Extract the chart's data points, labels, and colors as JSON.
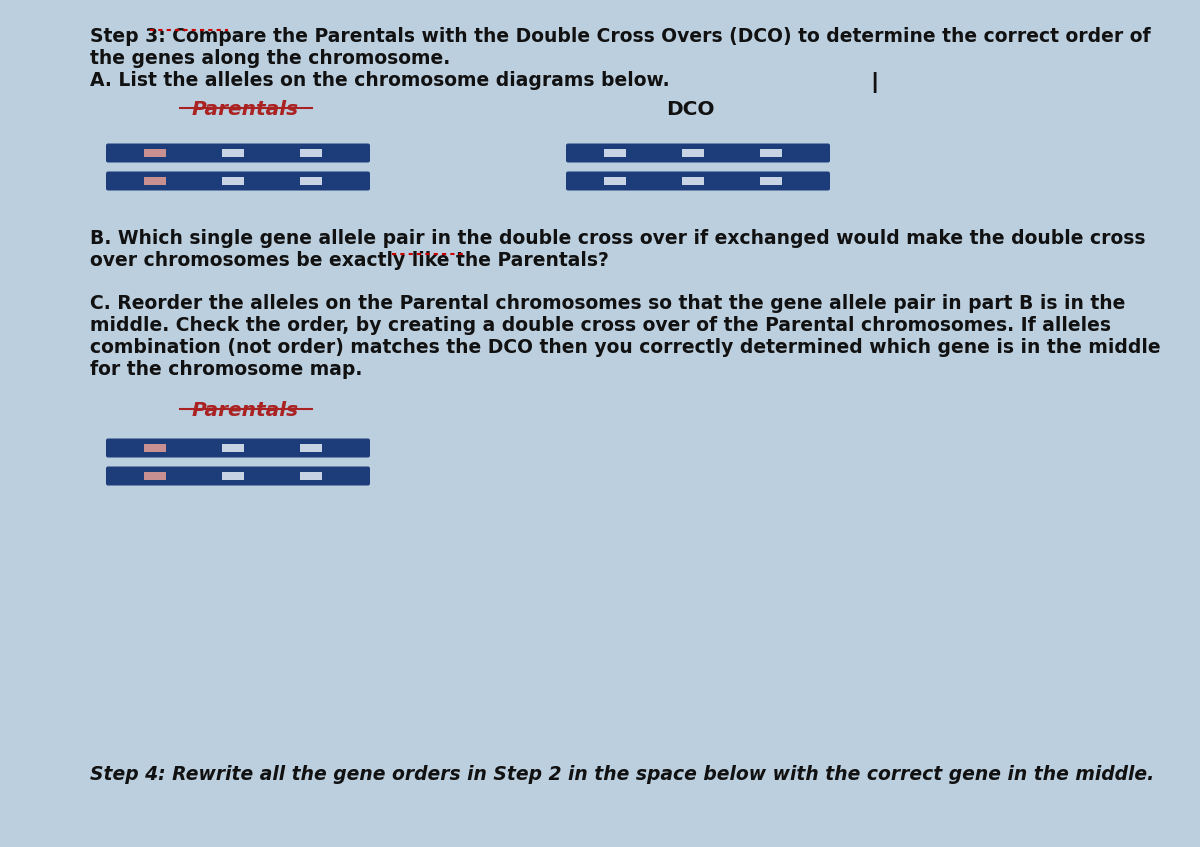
{
  "bg_color": "#bccfdf",
  "text_color": "#111111",
  "title_line1": "Step 3: Compare the Parentals with the Double Cross Overs (DCO) to determine the correct order of",
  "title_line2": "the genes along the chromosome.",
  "line_A": "A. List the alleles on the chromosome diagrams below.",
  "cursor_symbol": "I",
  "label_parentals_1": "Parentals",
  "label_dco": "DCO",
  "line_B1": "B. Which single gene allele pair in the double cross over if exchanged would make the double cross",
  "line_B2": "over chromosomes be exactly like the Parentals?",
  "line_C1": "C. Reorder the alleles on the Parental chromosomes so that the gene allele pair in part B is in the",
  "line_C2": "middle. Check the order, by creating a double cross over of the Parental chromosomes. If alleles",
  "line_C3": "combination (not order) matches the DCO then you correctly determined which gene is in the middle",
  "line_C4": "for the chromosome map.",
  "label_parentals_2": "Parentals",
  "step4": "Step 4: Rewrite all the gene orders in Step 2 in the space below with the correct gene in the middle.",
  "chrom_dark": "#1c3d7a",
  "chrom_light": "#c8d4e4",
  "chrom_pink": "#c89090",
  "font_size_body": 13.5,
  "font_size_label": 14.5,
  "underline_red": "#cc0000",
  "parental_label_color": "#aa2222",
  "dotted_red": "#cc0000"
}
